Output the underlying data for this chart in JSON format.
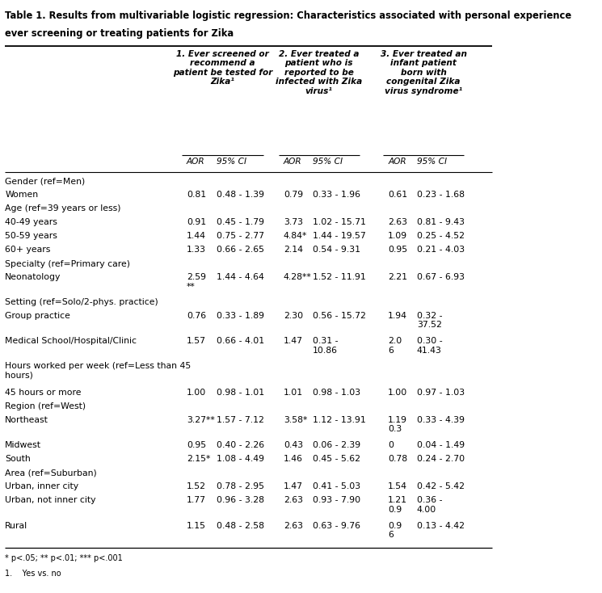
{
  "title_line1": "Table 1. Results from multivariable logistic regression: Characteristics associated with personal experience",
  "title_line2": "ever screening or treating patients for Zika",
  "col_headers": {
    "g1": "1. Ever screened or\nrecommend a\npatient be tested for\nZika¹",
    "g2": "2. Ever treated a\npatient who is\nreported to be\ninfected with Zika\nvirus¹",
    "g3": "3. Ever treated an\ninfant patient\nborn with\ncongenital Zika\nvirus syndrome¹"
  },
  "rows": [
    {
      "label": "Gender (ref=Men)",
      "ref": true,
      "aor1": "",
      "ci1": "",
      "aor2": "",
      "ci2": "",
      "aor3": "",
      "ci3": ""
    },
    {
      "label": "Women",
      "ref": false,
      "aor1": "0.81",
      "ci1": "0.48 - 1.39",
      "aor2": "0.79",
      "ci2": "0.33 - 1.96",
      "aor3": "0.61",
      "ci3": "0.23 - 1.68"
    },
    {
      "label": "Age (ref=39 years or less)",
      "ref": true,
      "aor1": "",
      "ci1": "",
      "aor2": "",
      "ci2": "",
      "aor3": "",
      "ci3": ""
    },
    {
      "label": "40-49 years",
      "ref": false,
      "aor1": "0.91",
      "ci1": "0.45 - 1.79",
      "aor2": "3.73",
      "ci2": "1.02 - 15.71",
      "aor3": "2.63",
      "ci3": "0.81 - 9.43"
    },
    {
      "label": "50-59 years",
      "ref": false,
      "aor1": "1.44",
      "ci1": "0.75 - 2.77",
      "aor2": "4.84*",
      "ci2": "1.44 - 19.57",
      "aor3": "1.09",
      "ci3": "0.25 - 4.52"
    },
    {
      "label": "60+ years",
      "ref": false,
      "aor1": "1.33",
      "ci1": "0.66 - 2.65",
      "aor2": "2.14",
      "ci2": "0.54 - 9.31",
      "aor3": "0.95",
      "ci3": "0.21 - 4.03"
    },
    {
      "label": "Specialty (ref=Primary care)",
      "ref": true,
      "aor1": "",
      "ci1": "",
      "aor2": "",
      "ci2": "",
      "aor3": "",
      "ci3": ""
    },
    {
      "label": "Neonatology",
      "ref": false,
      "aor1": "2.59\n**",
      "ci1": "1.44 - 4.64",
      "aor2": "4.28**",
      "ci2": "1.52 - 11.91",
      "aor3": "2.21",
      "ci3": "0.67 - 6.93"
    },
    {
      "label": "Setting (ref=Solo/2-phys. practice)",
      "ref": true,
      "aor1": "",
      "ci1": "",
      "aor2": "",
      "ci2": "",
      "aor3": "",
      "ci3": ""
    },
    {
      "label": "Group practice",
      "ref": false,
      "aor1": "0.76",
      "ci1": "0.33 - 1.89",
      "aor2": "2.30",
      "ci2": "0.56 - 15.72",
      "aor3": "1.94",
      "ci3": "0.32 -\n37.52"
    },
    {
      "label": "Medical School/Hospital/Clinic",
      "ref": false,
      "aor1": "1.57",
      "ci1": "0.66 - 4.01",
      "aor2": "1.47",
      "ci2": "0.31 -\n10.86",
      "aor3": "2.0\n6",
      "ci3": "0.30 -\n41.43"
    },
    {
      "label": "Hours worked per week (ref=Less than 45\nhours)",
      "ref": true,
      "aor1": "",
      "ci1": "",
      "aor2": "",
      "ci2": "",
      "aor3": "",
      "ci3": ""
    },
    {
      "label": "45 hours or more",
      "ref": false,
      "aor1": "1.00",
      "ci1": "0.98 - 1.01",
      "aor2": "1.01",
      "ci2": "0.98 - 1.03",
      "aor3": "1.00",
      "ci3": "0.97 - 1.03"
    },
    {
      "label": "Region (ref=West)",
      "ref": true,
      "aor1": "",
      "ci1": "",
      "aor2": "",
      "ci2": "",
      "aor3": "",
      "ci3": ""
    },
    {
      "label": "Northeast",
      "ref": false,
      "aor1": "3.27**",
      "ci1": "1.57 - 7.12",
      "aor2": "3.58*",
      "ci2": "1.12 - 13.91",
      "aor3": "1.19\n0.3",
      "ci3": "0.33 - 4.39"
    },
    {
      "label": "Midwest",
      "ref": false,
      "aor1": "0.95",
      "ci1": "0.40 - 2.26",
      "aor2": "0.43",
      "ci2": "0.06 - 2.39",
      "aor3": "0",
      "ci3": "0.04 - 1.49"
    },
    {
      "label": "South",
      "ref": false,
      "aor1": "2.15*",
      "ci1": "1.08 - 4.49",
      "aor2": "1.46",
      "ci2": "0.45 - 5.62",
      "aor3": "0.78",
      "ci3": "0.24 - 2.70"
    },
    {
      "label": "Area (ref=Suburban)",
      "ref": true,
      "aor1": "",
      "ci1": "",
      "aor2": "",
      "ci2": "",
      "aor3": "",
      "ci3": ""
    },
    {
      "label": "Urban, inner city",
      "ref": false,
      "aor1": "1.52",
      "ci1": "0.78 - 2.95",
      "aor2": "1.47",
      "ci2": "0.41 - 5.03",
      "aor3": "1.54",
      "ci3": "0.42 - 5.42"
    },
    {
      "label": "Urban, not inner city",
      "ref": false,
      "aor1": "1.77",
      "ci1": "0.96 - 3.28",
      "aor2": "2.63",
      "ci2": "0.93 - 7.90",
      "aor3": "1.21\n0.9",
      "ci3": "0.36 -\n4.00"
    },
    {
      "label": "Rural",
      "ref": false,
      "aor1": "1.15",
      "ci1": "0.48 - 2.58",
      "aor2": "2.63",
      "ci2": "0.63 - 9.76",
      "aor3": "0.9\n6",
      "ci3": "0.13 - 4.42"
    }
  ],
  "footnote1": "* p<.05; ** p<.01; *** p<.001",
  "footnote2": "1.    Yes vs. no",
  "bg_color": "#ffffff"
}
